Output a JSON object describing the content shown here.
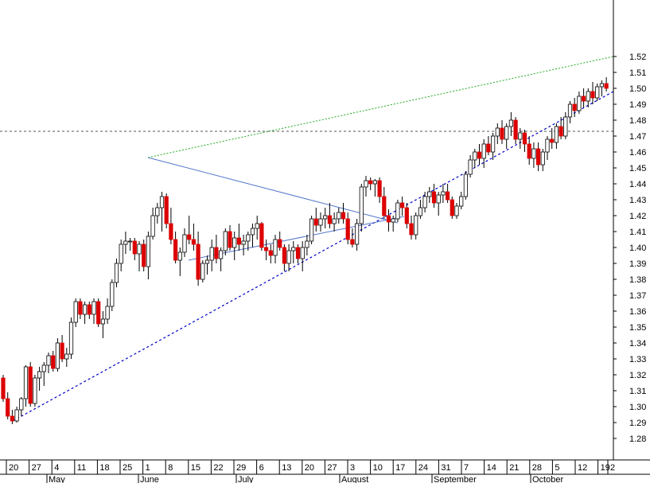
{
  "chart_data": {
    "type": "candlestick",
    "title": "",
    "xlabel": "",
    "ylabel": "",
    "ylim": [
      1.27,
      1.525
    ],
    "yticks": [
      1.28,
      1.29,
      1.3,
      1.31,
      1.32,
      1.33,
      1.34,
      1.35,
      1.36,
      1.37,
      1.38,
      1.39,
      1.4,
      1.41,
      1.42,
      1.43,
      1.44,
      1.45,
      1.46,
      1.47,
      1.48,
      1.49,
      1.5,
      1.51,
      1.52
    ],
    "day_labels": [
      "20",
      "27",
      "4",
      "11",
      "18",
      "25",
      "1",
      "8",
      "15",
      "22",
      "29",
      "6",
      "13",
      "20",
      "27",
      "3",
      "10",
      "17",
      "24",
      "31",
      "7",
      "14",
      "21",
      "28",
      "5",
      "12",
      "19",
      "2"
    ],
    "month_labels": [
      "May",
      "June",
      "July",
      "August",
      "September",
      "October"
    ],
    "up_color": "#ffffff",
    "down_color": "#dd0000",
    "candles": [
      [
        1.318,
        1.32,
        1.303,
        1.305
      ],
      [
        1.305,
        1.309,
        1.292,
        1.294
      ],
      [
        1.294,
        1.298,
        1.289,
        1.291
      ],
      [
        1.291,
        1.3,
        1.29,
        1.298
      ],
      [
        1.298,
        1.306,
        1.294,
        1.305
      ],
      [
        1.305,
        1.326,
        1.3,
        1.325
      ],
      [
        1.325,
        1.328,
        1.3,
        1.302
      ],
      [
        1.302,
        1.32,
        1.3,
        1.318
      ],
      [
        1.318,
        1.325,
        1.31,
        1.322
      ],
      [
        1.322,
        1.328,
        1.313,
        1.326
      ],
      [
        1.326,
        1.334,
        1.321,
        1.332
      ],
      [
        1.332,
        1.335,
        1.322,
        1.324
      ],
      [
        1.324,
        1.343,
        1.322,
        1.34
      ],
      [
        1.34,
        1.345,
        1.328,
        1.33
      ],
      [
        1.33,
        1.337,
        1.325,
        1.333
      ],
      [
        1.333,
        1.356,
        1.33,
        1.353
      ],
      [
        1.353,
        1.368,
        1.35,
        1.366
      ],
      [
        1.366,
        1.368,
        1.355,
        1.358
      ],
      [
        1.358,
        1.366,
        1.352,
        1.364
      ],
      [
        1.364,
        1.366,
        1.355,
        1.358
      ],
      [
        1.358,
        1.368,
        1.352,
        1.366
      ],
      [
        1.366,
        1.368,
        1.35,
        1.352
      ],
      [
        1.352,
        1.36,
        1.343,
        1.355
      ],
      [
        1.355,
        1.368,
        1.352,
        1.363
      ],
      [
        1.363,
        1.38,
        1.36,
        1.378
      ],
      [
        1.378,
        1.393,
        1.375,
        1.39
      ],
      [
        1.39,
        1.405,
        1.385,
        1.402
      ],
      [
        1.402,
        1.41,
        1.396,
        1.404
      ],
      [
        1.404,
        1.406,
        1.398,
        1.404
      ],
      [
        1.404,
        1.406,
        1.392,
        1.396
      ],
      [
        1.396,
        1.404,
        1.385,
        1.402
      ],
      [
        1.402,
        1.405,
        1.385,
        1.388
      ],
      [
        1.388,
        1.41,
        1.38,
        1.407
      ],
      [
        1.407,
        1.425,
        1.405,
        1.42
      ],
      [
        1.42,
        1.428,
        1.415,
        1.425
      ],
      [
        1.425,
        1.435,
        1.41,
        1.432
      ],
      [
        1.432,
        1.434,
        1.412,
        1.415
      ],
      [
        1.415,
        1.425,
        1.402,
        1.405
      ],
      [
        1.405,
        1.41,
        1.39,
        1.392
      ],
      [
        1.392,
        1.4,
        1.382,
        1.397
      ],
      [
        1.397,
        1.412,
        1.394,
        1.408
      ],
      [
        1.408,
        1.42,
        1.402,
        1.405
      ],
      [
        1.405,
        1.415,
        1.398,
        1.402
      ],
      [
        1.402,
        1.41,
        1.376,
        1.38
      ],
      [
        1.38,
        1.392,
        1.378,
        1.39
      ],
      [
        1.39,
        1.395,
        1.383,
        1.392
      ],
      [
        1.392,
        1.405,
        1.385,
        1.4
      ],
      [
        1.4,
        1.408,
        1.39,
        1.393
      ],
      [
        1.393,
        1.4,
        1.385,
        1.398
      ],
      [
        1.398,
        1.412,
        1.395,
        1.41
      ],
      [
        1.41,
        1.414,
        1.398,
        1.4
      ],
      [
        1.4,
        1.41,
        1.392,
        1.406
      ],
      [
        1.406,
        1.415,
        1.398,
        1.402
      ],
      [
        1.402,
        1.408,
        1.395,
        1.404
      ],
      [
        1.404,
        1.41,
        1.398,
        1.408
      ],
      [
        1.408,
        1.415,
        1.4,
        1.412
      ],
      [
        1.412,
        1.42,
        1.405,
        1.415
      ],
      [
        1.415,
        1.416,
        1.398,
        1.4
      ],
      [
        1.4,
        1.405,
        1.392,
        1.398
      ],
      [
        1.398,
        1.402,
        1.39,
        1.395
      ],
      [
        1.395,
        1.408,
        1.39,
        1.405
      ],
      [
        1.405,
        1.41,
        1.398,
        1.4
      ],
      [
        1.4,
        1.402,
        1.385,
        1.39
      ],
      [
        1.39,
        1.402,
        1.385,
        1.398
      ],
      [
        1.398,
        1.404,
        1.39,
        1.4
      ],
      [
        1.4,
        1.402,
        1.39,
        1.393
      ],
      [
        1.393,
        1.404,
        1.385,
        1.4
      ],
      [
        1.4,
        1.408,
        1.395,
        1.404
      ],
      [
        1.404,
        1.42,
        1.402,
        1.418
      ],
      [
        1.418,
        1.425,
        1.41,
        1.414
      ],
      [
        1.414,
        1.422,
        1.41,
        1.418
      ],
      [
        1.418,
        1.425,
        1.412,
        1.42
      ],
      [
        1.42,
        1.428,
        1.412,
        1.415
      ],
      [
        1.415,
        1.422,
        1.41,
        1.418
      ],
      [
        1.418,
        1.425,
        1.415,
        1.422
      ],
      [
        1.422,
        1.428,
        1.415,
        1.418
      ],
      [
        1.418,
        1.422,
        1.402,
        1.405
      ],
      [
        1.405,
        1.412,
        1.4,
        1.402
      ],
      [
        1.402,
        1.418,
        1.398,
        1.415
      ],
      [
        1.415,
        1.44,
        1.41,
        1.438
      ],
      [
        1.438,
        1.445,
        1.432,
        1.442
      ],
      [
        1.442,
        1.444,
        1.436,
        1.44
      ],
      [
        1.44,
        1.443,
        1.432,
        1.442
      ],
      [
        1.442,
        1.444,
        1.428,
        1.432
      ],
      [
        1.432,
        1.438,
        1.418,
        1.42
      ],
      [
        1.42,
        1.424,
        1.41,
        1.416
      ],
      [
        1.416,
        1.42,
        1.41,
        1.418
      ],
      [
        1.418,
        1.43,
        1.416,
        1.428
      ],
      [
        1.428,
        1.432,
        1.42,
        1.425
      ],
      [
        1.425,
        1.428,
        1.412,
        1.415
      ],
      [
        1.415,
        1.42,
        1.405,
        1.408
      ],
      [
        1.408,
        1.422,
        1.405,
        1.42
      ],
      [
        1.42,
        1.43,
        1.418,
        1.425
      ],
      [
        1.425,
        1.435,
        1.422,
        1.432
      ],
      [
        1.432,
        1.438,
        1.428,
        1.435
      ],
      [
        1.435,
        1.44,
        1.425,
        1.428
      ],
      [
        1.428,
        1.435,
        1.42,
        1.433
      ],
      [
        1.433,
        1.44,
        1.428,
        1.435
      ],
      [
        1.435,
        1.44,
        1.428,
        1.43
      ],
      [
        1.43,
        1.432,
        1.418,
        1.42
      ],
      [
        1.42,
        1.428,
        1.418,
        1.426
      ],
      [
        1.426,
        1.435,
        1.424,
        1.432
      ],
      [
        1.432,
        1.448,
        1.43,
        1.446
      ],
      [
        1.446,
        1.458,
        1.444,
        1.455
      ],
      [
        1.455,
        1.462,
        1.45,
        1.46
      ],
      [
        1.46,
        1.465,
        1.452,
        1.456
      ],
      [
        1.456,
        1.468,
        1.45,
        1.465
      ],
      [
        1.465,
        1.47,
        1.458,
        1.46
      ],
      [
        1.46,
        1.472,
        1.455,
        1.47
      ],
      [
        1.47,
        1.478,
        1.465,
        1.475
      ],
      [
        1.475,
        1.48,
        1.465,
        1.468
      ],
      [
        1.468,
        1.478,
        1.462,
        1.476
      ],
      [
        1.476,
        1.485,
        1.47,
        1.48
      ],
      [
        1.48,
        1.482,
        1.465,
        1.468
      ],
      [
        1.468,
        1.475,
        1.462,
        1.472
      ],
      [
        1.472,
        1.474,
        1.46,
        1.465
      ],
      [
        1.465,
        1.47,
        1.452,
        1.456
      ],
      [
        1.456,
        1.466,
        1.45,
        1.462
      ],
      [
        1.462,
        1.466,
        1.448,
        1.452
      ],
      [
        1.452,
        1.462,
        1.448,
        1.46
      ],
      [
        1.46,
        1.47,
        1.455,
        1.468
      ],
      [
        1.468,
        1.475,
        1.462,
        1.466
      ],
      [
        1.466,
        1.478,
        1.462,
        1.476
      ],
      [
        1.476,
        1.482,
        1.468,
        1.47
      ],
      [
        1.47,
        1.485,
        1.468,
        1.482
      ],
      [
        1.482,
        1.492,
        1.478,
        1.49
      ],
      [
        1.49,
        1.494,
        1.482,
        1.486
      ],
      [
        1.486,
        1.498,
        1.484,
        1.495
      ],
      [
        1.495,
        1.5,
        1.488,
        1.492
      ],
      [
        1.492,
        1.5,
        1.488,
        1.498
      ],
      [
        1.498,
        1.504,
        1.49,
        1.494
      ],
      [
        1.494,
        1.503,
        1.492,
        1.501
      ],
      [
        1.501,
        1.505,
        1.495,
        1.503
      ],
      [
        1.503,
        1.507,
        1.498,
        1.5
      ]
    ]
  }
}
